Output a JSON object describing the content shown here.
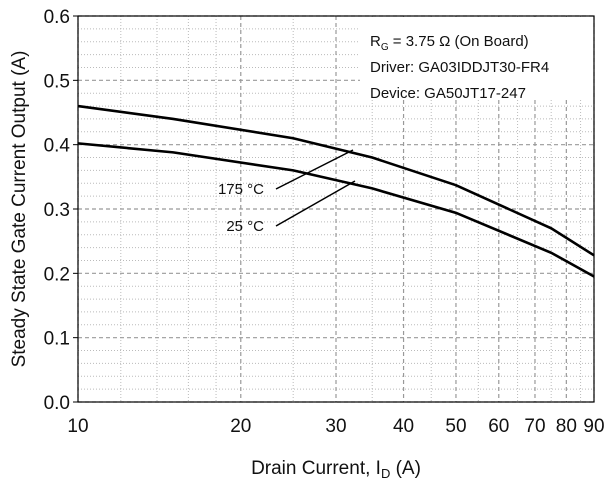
{
  "chart_data": {
    "type": "line",
    "y_label": "Steady State Gate Current Output (A)",
    "x_label": [
      "Drain Current, I",
      "D",
      " (A)"
    ],
    "info": [
      [
        "R",
        "G",
        " = 3.75 Ω (On Board)"
      ],
      [
        "Driver: GA03IDDJT30-FR4"
      ],
      [
        "Device: GA50JT17-247"
      ]
    ],
    "x": [
      10,
      15,
      25,
      35,
      50,
      75,
      90
    ],
    "series": [
      {
        "name": "175 °C",
        "color": "#000000",
        "values": [
          0.46,
          0.44,
          0.41,
          0.38,
          0.337,
          0.27,
          0.228
        ]
      },
      {
        "name": "25 °C",
        "color": "#000000",
        "values": [
          0.402,
          0.388,
          0.36,
          0.332,
          0.294,
          0.232,
          0.195
        ]
      }
    ],
    "xlim": [
      10,
      90
    ],
    "ylim": [
      0,
      0.6
    ],
    "log_x": true,
    "grid": true,
    "xticks": [
      10,
      20,
      30,
      40,
      50,
      60,
      70,
      80,
      90
    ],
    "yticks": [
      {
        "value": 0,
        "label": "0.0"
      },
      0.1,
      0.2,
      0.3,
      0.4,
      0.5,
      0.6
    ],
    "xminorticks": [
      12,
      14,
      16,
      18,
      25,
      35,
      45,
      55,
      65,
      75,
      85
    ],
    "yminorticks": [
      0.02,
      0.04,
      0.06,
      0.08,
      0.12,
      0.14,
      0.16,
      0.18,
      0.22,
      0.24,
      0.26,
      0.28,
      0.32,
      0.34,
      0.36,
      0.38,
      0.42,
      0.44,
      0.46,
      0.48,
      0.52,
      0.54,
      0.56,
      0.58
    ]
  }
}
